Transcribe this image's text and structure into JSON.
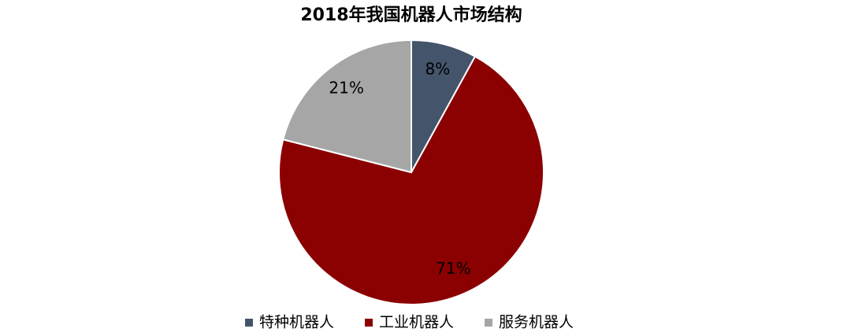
{
  "chart_data": {
    "type": "pie",
    "title": "2018年我国机器人市场结构",
    "categories": [
      "特种机器人",
      "工业机器人",
      "服务机器人"
    ],
    "values": [
      8,
      71,
      21
    ],
    "value_labels": [
      "8%",
      "71%",
      "21%"
    ],
    "colors": [
      "#44546a",
      "#8b0000",
      "#a6a6a6"
    ],
    "legend": "bottom"
  }
}
